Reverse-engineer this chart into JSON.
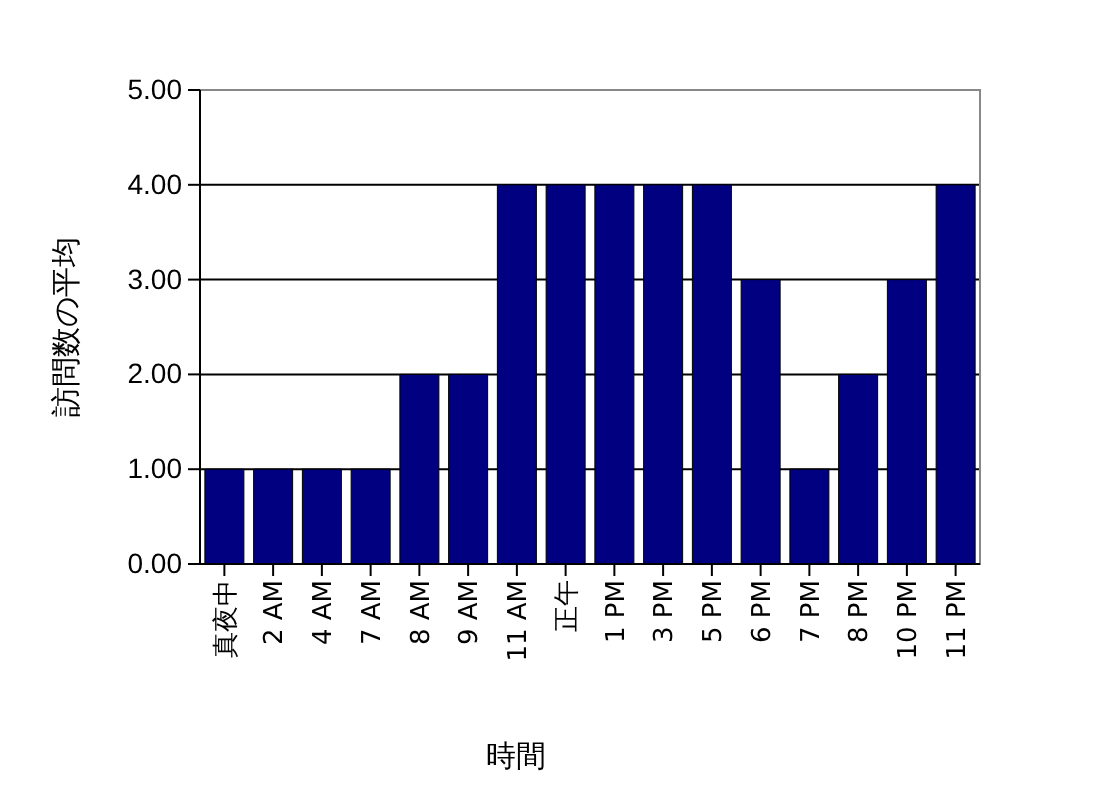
{
  "chart_data": {
    "type": "bar",
    "xlabel": "時間",
    "ylabel": "訪問数の平均",
    "categories": [
      "真夜中",
      "2 AM",
      "4 AM",
      "7 AM",
      "8 AM",
      "9 AM",
      "11 AM",
      "正午",
      "1 PM",
      "3 PM",
      "5 PM",
      "6 PM",
      "7 PM",
      "8 PM",
      "10 PM",
      "11 PM"
    ],
    "values": [
      1,
      1,
      1,
      1,
      2,
      2,
      4,
      4,
      4,
      4,
      4,
      3,
      1,
      2,
      3,
      4
    ],
    "color": "#000080",
    "ylim": [
      0,
      5
    ],
    "yticks": [
      {
        "value": 0,
        "label": "0.00"
      },
      {
        "value": 1,
        "label": "1.00"
      },
      {
        "value": 2,
        "label": "2.00"
      },
      {
        "value": 3,
        "label": "3.00"
      },
      {
        "value": 4,
        "label": "4.00"
      },
      {
        "value": 5,
        "label": "5.00"
      }
    ],
    "grid": "y"
  }
}
